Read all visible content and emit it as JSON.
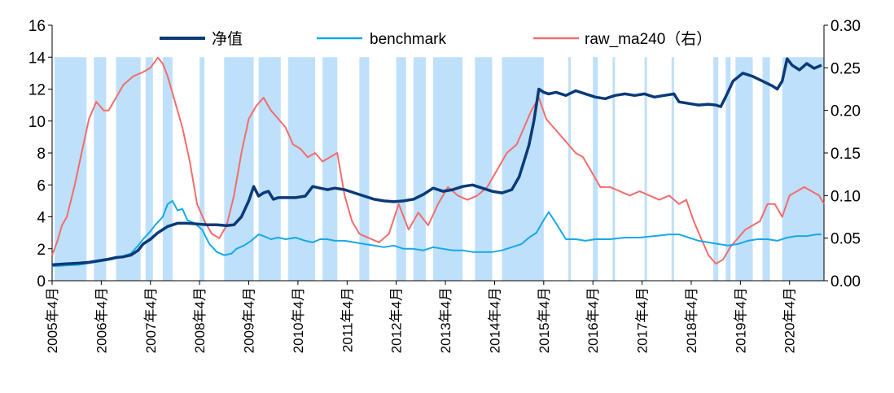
{
  "chart_data": {
    "type": "line",
    "left_axis": {
      "min": 0,
      "max": 16,
      "step": 2,
      "ticks": [
        "0",
        "2",
        "4",
        "6",
        "8",
        "10",
        "12",
        "14",
        "16"
      ]
    },
    "right_axis": {
      "min": 0,
      "max": 0.3,
      "step": 0.05,
      "ticks": [
        "0.00",
        "0.05",
        "0.10",
        "0.15",
        "0.20",
        "0.25",
        "0.30"
      ]
    },
    "x_range": [
      2005.25,
      2020.95
    ],
    "x_ticks": [
      {
        "value": 2005.25,
        "label": "2005年4月"
      },
      {
        "value": 2006.25,
        "label": "2006年4月"
      },
      {
        "value": 2007.25,
        "label": "2007年4月"
      },
      {
        "value": 2008.25,
        "label": "2008年4月"
      },
      {
        "value": 2009.25,
        "label": "2009年4月"
      },
      {
        "value": 2010.25,
        "label": "2010年4月"
      },
      {
        "value": 2011.25,
        "label": "2011年4月"
      },
      {
        "value": 2012.25,
        "label": "2012年4月"
      },
      {
        "value": 2013.25,
        "label": "2013年4月"
      },
      {
        "value": 2014.25,
        "label": "2014年4月"
      },
      {
        "value": 2015.25,
        "label": "2015年4月"
      },
      {
        "value": 2016.25,
        "label": "2016年4月"
      },
      {
        "value": 2017.25,
        "label": "2017年4月"
      },
      {
        "value": 2018.25,
        "label": "2018年4月"
      },
      {
        "value": 2019.25,
        "label": "2019年4月"
      },
      {
        "value": 2020.25,
        "label": "2020年4月"
      }
    ],
    "legend_position": "top",
    "series": [
      {
        "name": "净值",
        "axis": "left",
        "color": "#0b3a78",
        "x": [
          2005.25,
          2005.5,
          2005.8,
          2006.0,
          2006.2,
          2006.4,
          2006.55,
          2006.7,
          2006.85,
          2007.0,
          2007.1,
          2007.25,
          2007.4,
          2007.6,
          2007.8,
          2008.0,
          2008.2,
          2008.4,
          2008.6,
          2008.8,
          2008.95,
          2009.1,
          2009.25,
          2009.35,
          2009.45,
          2009.55,
          2009.65,
          2009.75,
          2009.85,
          2010.0,
          2010.2,
          2010.4,
          2010.55,
          2010.7,
          2010.85,
          2011.0,
          2011.2,
          2011.4,
          2011.6,
          2011.8,
          2012.0,
          2012.2,
          2012.4,
          2012.6,
          2012.8,
          2013.0,
          2013.2,
          2013.4,
          2013.6,
          2013.8,
          2014.0,
          2014.2,
          2014.4,
          2014.6,
          2014.75,
          2014.85,
          2014.95,
          2015.05,
          2015.15,
          2015.25,
          2015.35,
          2015.5,
          2015.7,
          2015.9,
          2016.1,
          2016.3,
          2016.5,
          2016.7,
          2016.9,
          2017.1,
          2017.3,
          2017.5,
          2017.7,
          2017.9,
          2018.0,
          2018.2,
          2018.4,
          2018.6,
          2018.75,
          2018.85,
          2018.95,
          2019.1,
          2019.3,
          2019.5,
          2019.7,
          2019.9,
          2020.0,
          2020.1,
          2020.2,
          2020.3,
          2020.45,
          2020.6,
          2020.75,
          2020.9
        ],
        "y": [
          1.0,
          1.05,
          1.1,
          1.15,
          1.25,
          1.35,
          1.45,
          1.5,
          1.6,
          1.9,
          2.3,
          2.6,
          3.0,
          3.4,
          3.6,
          3.6,
          3.55,
          3.5,
          3.5,
          3.45,
          3.5,
          4.0,
          5.0,
          5.9,
          5.3,
          5.5,
          5.6,
          5.1,
          5.2,
          5.2,
          5.2,
          5.3,
          5.9,
          5.8,
          5.7,
          5.8,
          5.7,
          5.5,
          5.3,
          5.1,
          5.0,
          4.95,
          5.0,
          5.1,
          5.4,
          5.8,
          5.6,
          5.7,
          5.9,
          6.0,
          5.8,
          5.6,
          5.5,
          5.7,
          6.5,
          7.5,
          8.5,
          10.0,
          12.0,
          11.8,
          11.7,
          11.8,
          11.6,
          11.9,
          11.7,
          11.5,
          11.4,
          11.6,
          11.7,
          11.6,
          11.7,
          11.5,
          11.6,
          11.7,
          11.2,
          11.1,
          11.0,
          11.05,
          11.0,
          10.9,
          11.5,
          12.5,
          13.0,
          12.8,
          12.5,
          12.2,
          12.0,
          12.5,
          13.9,
          13.5,
          13.2,
          13.6,
          13.3,
          13.5
        ]
      },
      {
        "name": "benchmark",
        "axis": "left",
        "color": "#16a9e6",
        "x": [
          2005.25,
          2005.5,
          2005.8,
          2006.0,
          2006.2,
          2006.4,
          2006.55,
          2006.7,
          2006.85,
          2007.0,
          2007.1,
          2007.25,
          2007.35,
          2007.5,
          2007.6,
          2007.7,
          2007.8,
          2007.9,
          2008.0,
          2008.15,
          2008.3,
          2008.45,
          2008.6,
          2008.75,
          2008.9,
          2009.0,
          2009.15,
          2009.3,
          2009.45,
          2009.55,
          2009.7,
          2009.85,
          2010.0,
          2010.2,
          2010.4,
          2010.55,
          2010.7,
          2010.85,
          2011.0,
          2011.2,
          2011.4,
          2011.6,
          2011.8,
          2012.0,
          2012.2,
          2012.4,
          2012.6,
          2012.8,
          2013.0,
          2013.2,
          2013.4,
          2013.6,
          2013.8,
          2014.0,
          2014.2,
          2014.4,
          2014.6,
          2014.8,
          2014.95,
          2015.1,
          2015.25,
          2015.35,
          2015.5,
          2015.7,
          2015.9,
          2016.1,
          2016.3,
          2016.6,
          2016.9,
          2017.2,
          2017.5,
          2017.8,
          2018.0,
          2018.2,
          2018.4,
          2018.6,
          2018.8,
          2019.0,
          2019.2,
          2019.4,
          2019.6,
          2019.8,
          2020.0,
          2020.2,
          2020.4,
          2020.6,
          2020.8,
          2020.9
        ],
        "y": [
          0.9,
          0.95,
          1.0,
          1.1,
          1.2,
          1.3,
          1.4,
          1.55,
          1.7,
          2.2,
          2.6,
          3.1,
          3.5,
          4.0,
          4.8,
          5.0,
          4.4,
          4.5,
          3.8,
          3.6,
          3.2,
          2.3,
          1.8,
          1.6,
          1.7,
          2.0,
          2.2,
          2.5,
          2.9,
          2.8,
          2.6,
          2.7,
          2.6,
          2.7,
          2.5,
          2.4,
          2.6,
          2.6,
          2.5,
          2.5,
          2.4,
          2.3,
          2.2,
          2.1,
          2.2,
          2.0,
          2.0,
          1.9,
          2.1,
          2.0,
          1.9,
          1.9,
          1.8,
          1.8,
          1.8,
          1.9,
          2.1,
          2.3,
          2.7,
          3.0,
          3.8,
          4.3,
          3.6,
          2.6,
          2.6,
          2.5,
          2.6,
          2.6,
          2.7,
          2.7,
          2.8,
          2.9,
          2.9,
          2.7,
          2.5,
          2.4,
          2.3,
          2.2,
          2.3,
          2.5,
          2.6,
          2.6,
          2.5,
          2.7,
          2.8,
          2.8,
          2.9,
          2.9
        ]
      },
      {
        "name": "raw_ma240（右）",
        "axis": "right",
        "color": "#f46c6c",
        "x": [
          2005.25,
          2005.35,
          2005.45,
          2005.55,
          2005.7,
          2005.85,
          2006.0,
          2006.15,
          2006.3,
          2006.4,
          2006.5,
          2006.7,
          2006.9,
          2007.1,
          2007.25,
          2007.4,
          2007.5,
          2007.6,
          2007.75,
          2007.9,
          2008.05,
          2008.2,
          2008.35,
          2008.5,
          2008.65,
          2008.8,
          2008.95,
          2009.1,
          2009.25,
          2009.4,
          2009.55,
          2009.7,
          2009.85,
          2010.0,
          2010.15,
          2010.3,
          2010.45,
          2010.6,
          2010.75,
          2010.9,
          2011.05,
          2011.2,
          2011.35,
          2011.5,
          2011.7,
          2011.9,
          2012.1,
          2012.3,
          2012.5,
          2012.7,
          2012.9,
          2013.1,
          2013.3,
          2013.5,
          2013.7,
          2013.9,
          2014.1,
          2014.3,
          2014.5,
          2014.7,
          2014.85,
          2015.0,
          2015.15,
          2015.3,
          2015.45,
          2015.6,
          2015.75,
          2015.9,
          2016.05,
          2016.2,
          2016.4,
          2016.6,
          2016.8,
          2017.0,
          2017.2,
          2017.4,
          2017.6,
          2017.8,
          2018.0,
          2018.15,
          2018.3,
          2018.45,
          2018.6,
          2018.75,
          2018.9,
          2019.05,
          2019.2,
          2019.35,
          2019.5,
          2019.65,
          2019.8,
          2019.95,
          2020.1,
          2020.25,
          2020.4,
          2020.55,
          2020.7,
          2020.85,
          2020.95
        ],
        "y": [
          0.03,
          0.045,
          0.065,
          0.075,
          0.11,
          0.15,
          0.19,
          0.21,
          0.2,
          0.2,
          0.21,
          0.23,
          0.24,
          0.245,
          0.25,
          0.262,
          0.255,
          0.24,
          0.21,
          0.18,
          0.14,
          0.09,
          0.07,
          0.055,
          0.05,
          0.065,
          0.1,
          0.15,
          0.19,
          0.205,
          0.215,
          0.2,
          0.19,
          0.18,
          0.16,
          0.155,
          0.145,
          0.15,
          0.14,
          0.145,
          0.15,
          0.1,
          0.07,
          0.055,
          0.05,
          0.045,
          0.055,
          0.09,
          0.06,
          0.08,
          0.065,
          0.09,
          0.11,
          0.1,
          0.095,
          0.1,
          0.11,
          0.13,
          0.15,
          0.16,
          0.18,
          0.2,
          0.215,
          0.19,
          0.18,
          0.17,
          0.16,
          0.15,
          0.145,
          0.13,
          0.11,
          0.11,
          0.105,
          0.1,
          0.105,
          0.1,
          0.095,
          0.1,
          0.09,
          0.095,
          0.07,
          0.05,
          0.03,
          0.02,
          0.025,
          0.04,
          0.05,
          0.06,
          0.065,
          0.07,
          0.09,
          0.09,
          0.075,
          0.1,
          0.105,
          0.11,
          0.105,
          0.1,
          0.09
        ]
      }
    ],
    "shaded_bands": {
      "color": "#bfe0fa",
      "y_top": 14,
      "ranges": [
        [
          2005.3,
          2005.95
        ],
        [
          2006.1,
          2006.35
        ],
        [
          2006.55,
          2007.05
        ],
        [
          2007.15,
          2007.3
        ],
        [
          2007.5,
          2007.7
        ],
        [
          2008.25,
          2008.35
        ],
        [
          2008.75,
          2009.35
        ],
        [
          2009.45,
          2009.9
        ],
        [
          2010.05,
          2010.6
        ],
        [
          2010.75,
          2011.05
        ],
        [
          2011.5,
          2011.7
        ],
        [
          2012.25,
          2012.45
        ],
        [
          2012.6,
          2012.85
        ],
        [
          2013.0,
          2013.6
        ],
        [
          2013.85,
          2014.2
        ],
        [
          2014.4,
          2015.25
        ],
        [
          2015.75,
          2015.8
        ],
        [
          2016.25,
          2016.35
        ],
        [
          2016.65,
          2016.7
        ],
        [
          2017.3,
          2017.35
        ],
        [
          2017.85,
          2017.9
        ],
        [
          2018.7,
          2018.8
        ],
        [
          2018.95,
          2019.05
        ],
        [
          2019.15,
          2019.5
        ],
        [
          2019.7,
          2019.85
        ],
        [
          2020.1,
          2020.95
        ]
      ]
    }
  }
}
